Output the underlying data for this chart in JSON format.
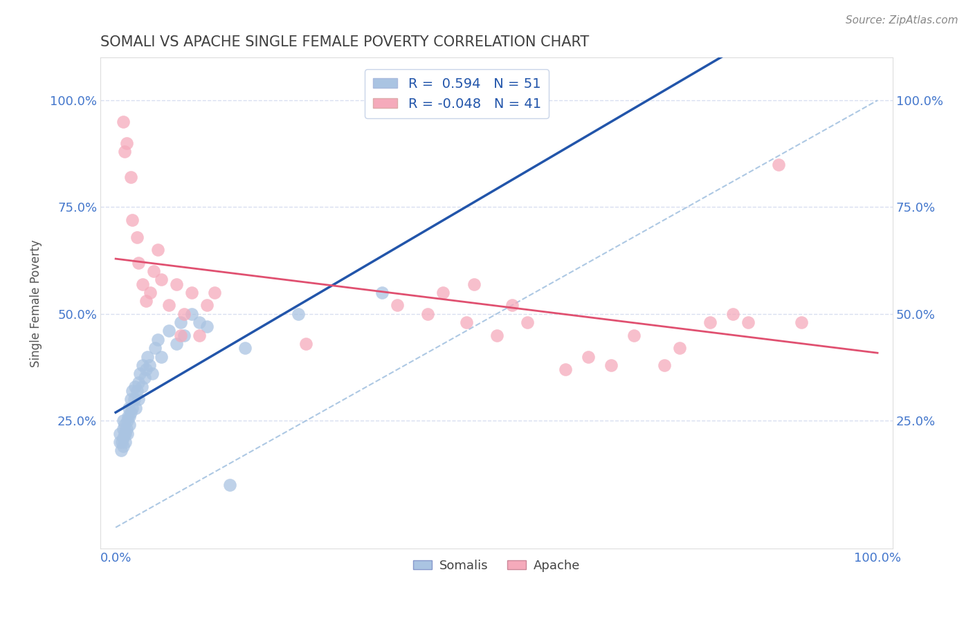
{
  "title": "SOMALI VS APACHE SINGLE FEMALE POVERTY CORRELATION CHART",
  "source_text": "Source: ZipAtlas.com",
  "ylabel": "Single Female Poverty",
  "xlim": [
    -0.02,
    1.02
  ],
  "ylim": [
    -0.05,
    1.1
  ],
  "xtick_positions": [
    0.0,
    1.0
  ],
  "xtick_labels": [
    "0.0%",
    "100.0%"
  ],
  "ytick_positions": [
    0.25,
    0.5,
    0.75,
    1.0
  ],
  "ytick_labels": [
    "25.0%",
    "50.0%",
    "75.0%",
    "100.0%"
  ],
  "r_somali": 0.594,
  "n_somali": 51,
  "r_apache": -0.048,
  "n_apache": 41,
  "somali_color": "#aac4e2",
  "apache_color": "#f5aabb",
  "somali_line_color": "#2255aa",
  "apache_line_color": "#e05070",
  "dash_line_color": "#99bbdd",
  "grid_color": "#d8dff0",
  "tick_color": "#4477cc",
  "title_color": "#404040",
  "source_color": "#888888",
  "legend_label_color": "#2255aa",
  "somali_scatter": [
    [
      0.005,
      0.2
    ],
    [
      0.005,
      0.22
    ],
    [
      0.007,
      0.18
    ],
    [
      0.008,
      0.2
    ],
    [
      0.01,
      0.21
    ],
    [
      0.01,
      0.23
    ],
    [
      0.01,
      0.25
    ],
    [
      0.01,
      0.19
    ],
    [
      0.012,
      0.22
    ],
    [
      0.012,
      0.24
    ],
    [
      0.013,
      0.22
    ],
    [
      0.013,
      0.2
    ],
    [
      0.014,
      0.23
    ],
    [
      0.015,
      0.25
    ],
    [
      0.015,
      0.22
    ],
    [
      0.016,
      0.26
    ],
    [
      0.017,
      0.28
    ],
    [
      0.018,
      0.24
    ],
    [
      0.018,
      0.26
    ],
    [
      0.02,
      0.27
    ],
    [
      0.02,
      0.3
    ],
    [
      0.022,
      0.28
    ],
    [
      0.022,
      0.32
    ],
    [
      0.024,
      0.3
    ],
    [
      0.025,
      0.33
    ],
    [
      0.026,
      0.28
    ],
    [
      0.028,
      0.32
    ],
    [
      0.03,
      0.34
    ],
    [
      0.03,
      0.3
    ],
    [
      0.032,
      0.36
    ],
    [
      0.034,
      0.33
    ],
    [
      0.035,
      0.38
    ],
    [
      0.038,
      0.35
    ],
    [
      0.04,
      0.37
    ],
    [
      0.042,
      0.4
    ],
    [
      0.044,
      0.38
    ],
    [
      0.048,
      0.36
    ],
    [
      0.052,
      0.42
    ],
    [
      0.055,
      0.44
    ],
    [
      0.06,
      0.4
    ],
    [
      0.07,
      0.46
    ],
    [
      0.08,
      0.43
    ],
    [
      0.085,
      0.48
    ],
    [
      0.09,
      0.45
    ],
    [
      0.1,
      0.5
    ],
    [
      0.11,
      0.48
    ],
    [
      0.12,
      0.47
    ],
    [
      0.15,
      0.1
    ],
    [
      0.17,
      0.42
    ],
    [
      0.24,
      0.5
    ],
    [
      0.35,
      0.55
    ]
  ],
  "apache_scatter": [
    [
      0.01,
      0.95
    ],
    [
      0.012,
      0.88
    ],
    [
      0.014,
      0.9
    ],
    [
      0.02,
      0.82
    ],
    [
      0.022,
      0.72
    ],
    [
      0.028,
      0.68
    ],
    [
      0.03,
      0.62
    ],
    [
      0.035,
      0.57
    ],
    [
      0.04,
      0.53
    ],
    [
      0.045,
      0.55
    ],
    [
      0.05,
      0.6
    ],
    [
      0.055,
      0.65
    ],
    [
      0.06,
      0.58
    ],
    [
      0.07,
      0.52
    ],
    [
      0.08,
      0.57
    ],
    [
      0.085,
      0.45
    ],
    [
      0.09,
      0.5
    ],
    [
      0.1,
      0.55
    ],
    [
      0.11,
      0.45
    ],
    [
      0.12,
      0.52
    ],
    [
      0.13,
      0.55
    ],
    [
      0.25,
      0.43
    ],
    [
      0.37,
      0.52
    ],
    [
      0.41,
      0.5
    ],
    [
      0.43,
      0.55
    ],
    [
      0.46,
      0.48
    ],
    [
      0.47,
      0.57
    ],
    [
      0.5,
      0.45
    ],
    [
      0.52,
      0.52
    ],
    [
      0.54,
      0.48
    ],
    [
      0.59,
      0.37
    ],
    [
      0.62,
      0.4
    ],
    [
      0.65,
      0.38
    ],
    [
      0.68,
      0.45
    ],
    [
      0.72,
      0.38
    ],
    [
      0.74,
      0.42
    ],
    [
      0.78,
      0.48
    ],
    [
      0.81,
      0.5
    ],
    [
      0.83,
      0.48
    ],
    [
      0.87,
      0.85
    ],
    [
      0.9,
      0.48
    ]
  ]
}
